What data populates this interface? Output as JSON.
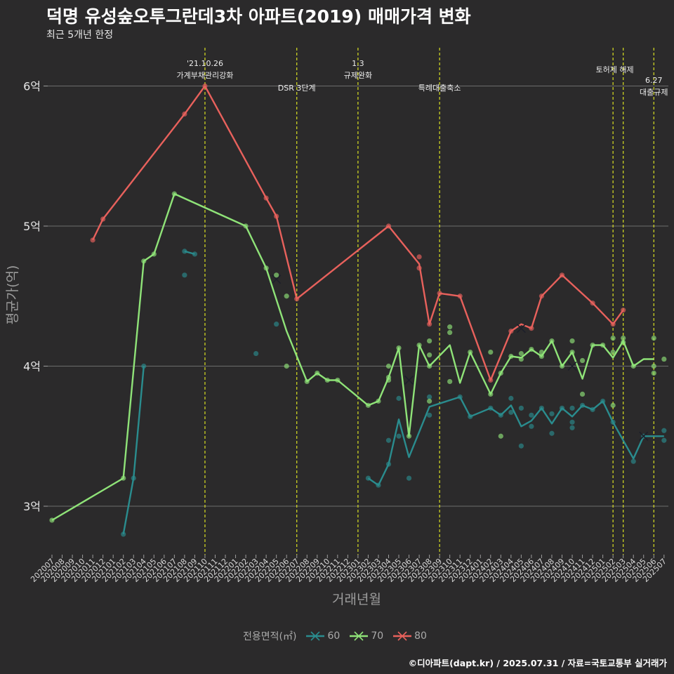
{
  "title": "덕명 유성숲오투그란데3차 아파트(2019) 매매가격 변화",
  "subtitle": "최근 5개년 한정",
  "caption": "©디아파트(dapt.kr) / 2025.07.31 / 자료=국토교통부 실거래가",
  "chart_data": {
    "type": "line",
    "xlabel": "거래년월",
    "ylabel": "평균가(억)",
    "x": [
      "202007",
      "202008",
      "202009",
      "202010",
      "202011",
      "202012",
      "202101",
      "202102",
      "202103",
      "202104",
      "202105",
      "202106",
      "202107",
      "202108",
      "202109",
      "202110",
      "202111",
      "202112",
      "202201",
      "202202",
      "202203",
      "202204",
      "202205",
      "202206",
      "202207",
      "202208",
      "202209",
      "202210",
      "202211",
      "202212",
      "202301",
      "202302",
      "202303",
      "202304",
      "202305",
      "202306",
      "202307",
      "202308",
      "202309",
      "202310",
      "202311",
      "202312",
      "202401",
      "202402",
      "202403",
      "202404",
      "202405",
      "202406",
      "202407",
      "202408",
      "202409",
      "202410",
      "202411",
      "202412",
      "202501",
      "202502",
      "202503",
      "202504",
      "202505",
      "202506",
      "202507"
    ],
    "ylim": [
      2.68,
      6.35
    ],
    "yticks": [
      3,
      4,
      5,
      6
    ],
    "ytick_labels": [
      "3억",
      "4억",
      "5억",
      "6억"
    ],
    "grid": "horizontal",
    "legend": {
      "title": "전용면적(㎡)",
      "position": "bottom"
    },
    "series": [
      {
        "name": "60",
        "color": "#2a8c8e",
        "lines": [
          [
            [
              "202102",
              2.8
            ],
            [
              "202103",
              3.2
            ],
            [
              "202104",
              4.0
            ]
          ],
          [
            [
              "202108",
              4.82
            ],
            [
              "202109",
              4.8
            ]
          ],
          [
            [
              "202302",
              3.2
            ],
            [
              "202303",
              3.15
            ],
            [
              "202304",
              3.3
            ],
            [
              "202305",
              3.62
            ],
            [
              "202306",
              3.35
            ],
            [
              "202308",
              3.71
            ],
            [
              "202311",
              3.78
            ],
            [
              "202312",
              3.64
            ],
            [
              "202402",
              3.7
            ],
            [
              "202403",
              3.65
            ],
            [
              "202404",
              3.72
            ],
            [
              "202405",
              3.57
            ],
            [
              "202406",
              3.61
            ],
            [
              "202407",
              3.7
            ],
            [
              "202408",
              3.59
            ],
            [
              "202409",
              3.7
            ],
            [
              "202410",
              3.64
            ],
            [
              "202411",
              3.72
            ],
            [
              "202412",
              3.69
            ],
            [
              "202501",
              3.75
            ],
            [
              "202502",
              3.6
            ],
            [
              "202504",
              3.34
            ],
            [
              "202505",
              3.5
            ],
            [
              "202506",
              3.5
            ],
            [
              "202507",
              3.5
            ]
          ]
        ],
        "points": [
          [
            "202102",
            2.8
          ],
          [
            "202103",
            3.2
          ],
          [
            "202104",
            4.0
          ],
          [
            "202108",
            4.82
          ],
          [
            "202109",
            4.8
          ],
          [
            "202108",
            4.65
          ],
          [
            "202203",
            4.09
          ],
          [
            "202205",
            4.3
          ],
          [
            "202302",
            3.2
          ],
          [
            "202303",
            3.15
          ],
          [
            "202304",
            3.3
          ],
          [
            "202304",
            3.47
          ],
          [
            "202305",
            3.77
          ],
          [
            "202305",
            3.5
          ],
          [
            "202306",
            3.2
          ],
          [
            "202308",
            3.78
          ],
          [
            "202308",
            3.65
          ],
          [
            "202311",
            3.78
          ],
          [
            "202312",
            3.64
          ],
          [
            "202402",
            3.7
          ],
          [
            "202403",
            3.65
          ],
          [
            "202404",
            3.77
          ],
          [
            "202404",
            3.67
          ],
          [
            "202405",
            3.7
          ],
          [
            "202405",
            3.43
          ],
          [
            "202406",
            3.65
          ],
          [
            "202406",
            3.57
          ],
          [
            "202407",
            3.7
          ],
          [
            "202408",
            3.52
          ],
          [
            "202408",
            3.66
          ],
          [
            "202409",
            3.7
          ],
          [
            "202410",
            3.56
          ],
          [
            "202410",
            3.6
          ],
          [
            "202410",
            3.7
          ],
          [
            "202411",
            3.72
          ],
          [
            "202412",
            3.69
          ],
          [
            "202501",
            3.75
          ],
          [
            "202502",
            3.6
          ],
          [
            "202504",
            3.32
          ],
          [
            "202505",
            3.5
          ],
          [
            "202507",
            3.54
          ],
          [
            "202507",
            3.47
          ]
        ],
        "crosses": [
          [
            "202205",
            4.62
          ],
          [
            "202505",
            3.5
          ]
        ]
      },
      {
        "name": "70",
        "color": "#8fe378",
        "lines": [
          [
            [
              "202007",
              2.9
            ],
            [
              "202102",
              3.2
            ],
            [
              "202104",
              4.75
            ],
            [
              "202105",
              4.8
            ],
            [
              "202107",
              5.23
            ],
            [
              "202202",
              5.0
            ],
            [
              "202204",
              4.7
            ],
            [
              "202206",
              4.25
            ],
            [
              "202208",
              3.89
            ],
            [
              "202209",
              3.95
            ],
            [
              "202210",
              3.9
            ],
            [
              "202211",
              3.9
            ],
            [
              "202302",
              3.72
            ],
            [
              "202303",
              3.75
            ],
            [
              "202304",
              3.92
            ],
            [
              "202305",
              4.13
            ],
            [
              "202306",
              3.5
            ],
            [
              "202307",
              4.15
            ],
            [
              "202308",
              4.0
            ],
            [
              "202310",
              4.15
            ],
            [
              "202311",
              3.88
            ],
            [
              "202312",
              4.1
            ],
            [
              "202402",
              3.8
            ],
            [
              "202403",
              3.95
            ],
            [
              "202404",
              4.07
            ],
            [
              "202405",
              4.06
            ],
            [
              "202406",
              4.12
            ],
            [
              "202407",
              4.07
            ],
            [
              "202408",
              4.18
            ],
            [
              "202409",
              4.0
            ],
            [
              "202410",
              4.1
            ],
            [
              "202411",
              3.91
            ],
            [
              "202412",
              4.15
            ],
            [
              "202501",
              4.15
            ],
            [
              "202502",
              4.06
            ],
            [
              "202503",
              4.18
            ],
            [
              "202504",
              4.0
            ],
            [
              "202505",
              4.05
            ],
            [
              "202506",
              4.05
            ]
          ]
        ],
        "points": [
          [
            "202007",
            2.9
          ],
          [
            "202102",
            3.2
          ],
          [
            "202104",
            4.75
          ],
          [
            "202105",
            4.8
          ],
          [
            "202107",
            5.23
          ],
          [
            "202202",
            5.0
          ],
          [
            "202204",
            4.7
          ],
          [
            "202205",
            4.65
          ],
          [
            "202206",
            4.5
          ],
          [
            "202206",
            4.0
          ],
          [
            "202208",
            3.89
          ],
          [
            "202209",
            3.95
          ],
          [
            "202210",
            3.9
          ],
          [
            "202211",
            3.9
          ],
          [
            "202302",
            3.72
          ],
          [
            "202303",
            3.75
          ],
          [
            "202304",
            4.0
          ],
          [
            "202304",
            3.92
          ],
          [
            "202304",
            3.9
          ],
          [
            "202305",
            4.13
          ],
          [
            "202306",
            3.5
          ],
          [
            "202307",
            4.15
          ],
          [
            "202308",
            4.18
          ],
          [
            "202308",
            4.08
          ],
          [
            "202308",
            4.0
          ],
          [
            "202308",
            3.75
          ],
          [
            "202310",
            4.28
          ],
          [
            "202310",
            4.24
          ],
          [
            "202310",
            3.89
          ],
          [
            "202312",
            4.1
          ],
          [
            "202402",
            3.8
          ],
          [
            "202402",
            4.1
          ],
          [
            "202403",
            3.95
          ],
          [
            "202403",
            3.5
          ],
          [
            "202404",
            4.07
          ],
          [
            "202405",
            4.05
          ],
          [
            "202405",
            4.09
          ],
          [
            "202406",
            4.12
          ],
          [
            "202407",
            4.07
          ],
          [
            "202407",
            4.1
          ],
          [
            "202408",
            4.18
          ],
          [
            "202409",
            4.0
          ],
          [
            "202410",
            4.1
          ],
          [
            "202410",
            4.18
          ],
          [
            "202411",
            3.8
          ],
          [
            "202411",
            4.04
          ],
          [
            "202412",
            4.15
          ],
          [
            "202501",
            4.15
          ],
          [
            "202502",
            4.1
          ],
          [
            "202502",
            4.2
          ],
          [
            "202502",
            3.72
          ],
          [
            "202503",
            4.2
          ],
          [
            "202503",
            4.17
          ],
          [
            "202504",
            4.0
          ],
          [
            "202506",
            4.2
          ],
          [
            "202506",
            4.0
          ],
          [
            "202506",
            3.95
          ],
          [
            "202507",
            4.05
          ]
        ],
        "crosses": [
          [
            "202306",
            3.9
          ],
          [
            "202410",
            4.0
          ]
        ]
      },
      {
        "name": "80",
        "color": "#e8615c",
        "lines": [
          [
            [
              "202011",
              4.9
            ],
            [
              "202012",
              5.05
            ],
            [
              "202108",
              5.8
            ],
            [
              "202110",
              6.0
            ],
            [
              "202204",
              5.2
            ],
            [
              "202205",
              5.07
            ],
            [
              "202207",
              4.48
            ],
            [
              "202304",
              5.0
            ],
            [
              "202307",
              4.73
            ],
            [
              "202308",
              4.3
            ],
            [
              "202309",
              4.52
            ],
            [
              "202311",
              4.5
            ],
            [
              "202402",
              3.9
            ],
            [
              "202404",
              4.25
            ],
            [
              "202405",
              4.3
            ],
            [
              "202406",
              4.27
            ],
            [
              "202407",
              4.5
            ],
            [
              "202409",
              4.65
            ],
            [
              "202412",
              4.45
            ],
            [
              "202502",
              4.3
            ],
            [
              "202503",
              4.4
            ]
          ]
        ],
        "points": [
          [
            "202011",
            4.9
          ],
          [
            "202012",
            5.05
          ],
          [
            "202108",
            5.8
          ],
          [
            "202110",
            6.0
          ],
          [
            "202204",
            5.2
          ],
          [
            "202205",
            5.07
          ],
          [
            "202207",
            4.48
          ],
          [
            "202304",
            5.0
          ],
          [
            "202307",
            4.78
          ],
          [
            "202307",
            4.7
          ],
          [
            "202308",
            4.3
          ],
          [
            "202309",
            4.52
          ],
          [
            "202311",
            4.5
          ],
          [
            "202402",
            3.9
          ],
          [
            "202404",
            4.25
          ],
          [
            "202406",
            4.27
          ],
          [
            "202407",
            4.5
          ],
          [
            "202409",
            4.65
          ],
          [
            "202412",
            4.45
          ],
          [
            "202502",
            4.3
          ],
          [
            "202503",
            4.4
          ]
        ],
        "crosses": [
          [
            "202405",
            4.27
          ]
        ]
      }
    ],
    "annotations": [
      {
        "x": 15.0,
        "text": [
          "'21.10.26",
          "가계부채관리강화"
        ],
        "align": "middle",
        "row": "high"
      },
      {
        "x": 24.0,
        "text": [
          "DSR 3단계"
        ],
        "align": "middle",
        "row": "low"
      },
      {
        "x": 30.0,
        "text": [
          "1.3",
          "규제완화"
        ],
        "align": "middle",
        "row": "high"
      },
      {
        "x": 38.0,
        "text": [
          "특례대출축소"
        ],
        "align": "middle",
        "row": "low"
      },
      {
        "x": 55.0,
        "text": [],
        "align": "middle",
        "row": "none"
      },
      {
        "x": 56.0,
        "text": [
          "토허제 해제"
        ],
        "align": "end",
        "row": "mid"
      },
      {
        "x": 59.0,
        "text": [
          "6.27",
          "대출규제"
        ],
        "align": "middle",
        "row": "right"
      }
    ]
  }
}
